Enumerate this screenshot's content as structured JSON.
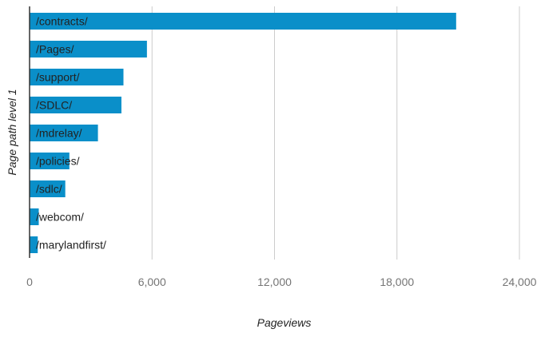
{
  "chart_data": {
    "type": "bar",
    "orientation": "horizontal",
    "xlabel": "Pageviews",
    "ylabel": "Page path level 1",
    "xlim": [
      0,
      24000
    ],
    "x_ticks": [
      0,
      6000,
      12000,
      18000,
      24000
    ],
    "x_tick_labels": [
      "0",
      "6,000",
      "12,000",
      "18,000",
      "24,000"
    ],
    "grid": true,
    "bar_color": "#0a8fc9",
    "categories": [
      "/contracts/",
      "/Pages/",
      "/support/",
      "/SDLC/",
      "/mdrelay/",
      "/policies/",
      "/sdlc/",
      "/webcom/",
      "/marylandfirst/"
    ],
    "values": [
      20900,
      5750,
      4600,
      4500,
      3350,
      1950,
      1750,
      450,
      400
    ]
  }
}
